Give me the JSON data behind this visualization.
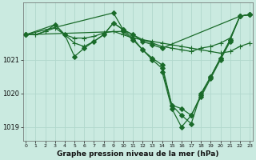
{
  "title": "Graphe pression niveau de la mer (hPa)",
  "bg_color": "#caeae0",
  "line_color": "#1a6b2a",
  "grid_color": "#b0d8cc",
  "ylim": [
    1018.6,
    1022.7
  ],
  "xlim": [
    -0.3,
    23.3
  ],
  "yticks": [
    1019,
    1020,
    1021
  ],
  "xticks": [
    0,
    1,
    2,
    3,
    4,
    5,
    6,
    7,
    8,
    9,
    10,
    11,
    12,
    13,
    14,
    15,
    16,
    17,
    18,
    19,
    20,
    21,
    22,
    23
  ],
  "series": [
    {
      "x": [
        0,
        1,
        2,
        3,
        4,
        5,
        6,
        7,
        8,
        9,
        10,
        11,
        12,
        13,
        14,
        15,
        16,
        17,
        18,
        19,
        20,
        21,
        22,
        23
      ],
      "y": [
        1021.75,
        1021.75,
        1021.85,
        1021.95,
        1021.75,
        1021.65,
        1021.65,
        1021.7,
        1021.8,
        1021.85,
        1021.75,
        1021.65,
        1021.6,
        1021.55,
        1021.5,
        1021.45,
        1021.4,
        1021.35,
        1021.3,
        1021.25,
        1021.2,
        1021.25,
        1021.4,
        1021.5
      ],
      "marker": "+",
      "markersize": 4,
      "lw": 0.9
    },
    {
      "x": [
        0,
        1,
        2,
        3,
        4,
        5,
        6,
        7,
        8,
        9,
        10,
        11,
        12,
        13,
        14,
        15,
        16,
        17,
        18,
        19,
        20,
        21,
        22,
        23
      ],
      "y": [
        1021.75,
        1021.75,
        1021.85,
        1022.05,
        1021.75,
        1021.5,
        1021.4,
        1021.55,
        1021.75,
        1022.1,
        1021.9,
        1021.75,
        1021.6,
        1021.5,
        1021.4,
        1021.35,
        1021.3,
        1021.25,
        1021.35,
        1021.4,
        1021.5,
        1021.65,
        1022.3,
        1022.35
      ],
      "marker": "+",
      "markersize": 4,
      "lw": 0.9
    },
    {
      "x": [
        0,
        3,
        4,
        5,
        6,
        7,
        8,
        9,
        10,
        11,
        12,
        13,
        14,
        22,
        23
      ],
      "y": [
        1021.75,
        1022.05,
        1021.75,
        1021.1,
        1021.35,
        1021.55,
        1021.75,
        1022.1,
        1021.9,
        1021.75,
        1021.55,
        1021.45,
        1021.35,
        1022.3,
        1022.35
      ],
      "marker": "D",
      "markersize": 3,
      "lw": 0.9
    },
    {
      "x": [
        0,
        9,
        10,
        11,
        12,
        13,
        14,
        15,
        16,
        17,
        18,
        19,
        20,
        21,
        22,
        23
      ],
      "y": [
        1021.75,
        1022.4,
        1021.9,
        1021.65,
        1021.3,
        1021.05,
        1020.85,
        1019.65,
        1019.55,
        1019.35,
        1019.95,
        1020.5,
        1021.05,
        1021.6,
        1022.3,
        1022.35
      ],
      "marker": "D",
      "markersize": 3,
      "lw": 0.9
    },
    {
      "x": [
        0,
        10,
        11,
        12,
        13,
        14,
        15,
        16,
        17,
        18,
        19,
        20,
        21,
        22,
        23
      ],
      "y": [
        1021.75,
        1021.85,
        1021.6,
        1021.3,
        1021.0,
        1020.75,
        1019.65,
        1019.35,
        1019.1,
        1020.0,
        1020.5,
        1021.05,
        1021.6,
        1022.3,
        1022.35
      ],
      "marker": "D",
      "markersize": 3,
      "lw": 0.9
    },
    {
      "x": [
        14,
        15,
        16,
        17,
        18,
        19,
        20,
        21
      ],
      "y": [
        1020.65,
        1019.55,
        1019.0,
        1019.35,
        1019.9,
        1020.45,
        1021.0,
        1021.55
      ],
      "marker": "D",
      "markersize": 3,
      "lw": 0.9
    }
  ]
}
